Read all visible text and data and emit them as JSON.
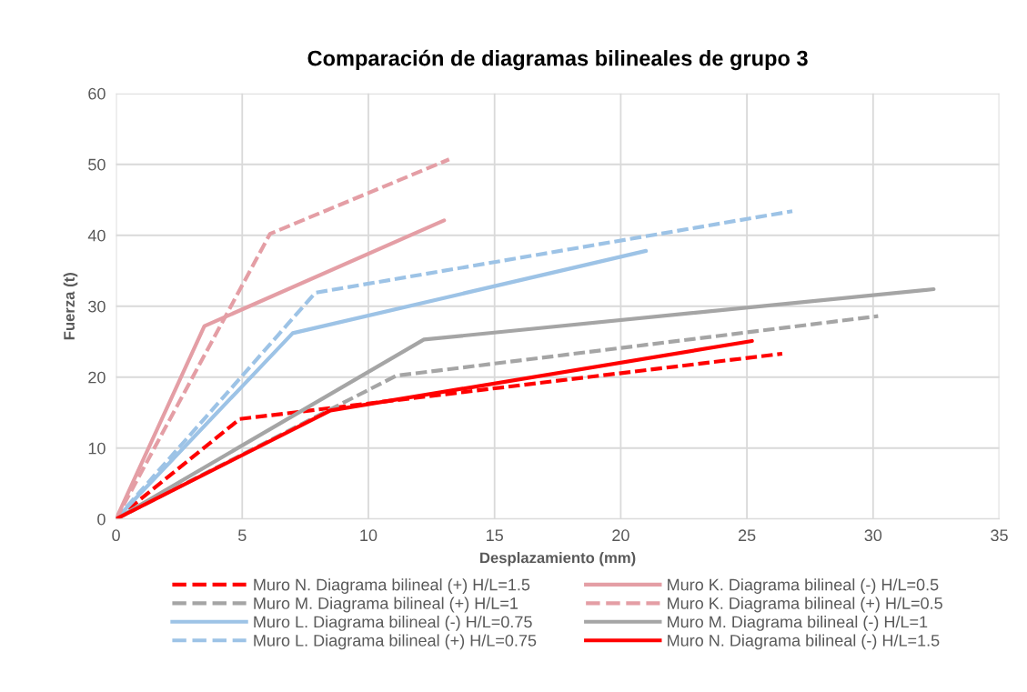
{
  "chart_data": {
    "type": "line",
    "title": "Comparación de diagramas bilineales de grupo 3",
    "xlabel": "Desplazamiento (mm)",
    "ylabel": "Fuerza (t)",
    "xlim": [
      0,
      35
    ],
    "xticks": [
      0,
      5,
      10,
      15,
      20,
      25,
      30,
      35
    ],
    "ylim": [
      0,
      60
    ],
    "yticks": [
      0,
      10,
      20,
      30,
      40,
      50,
      60
    ],
    "grid": true,
    "legend": "bottom",
    "marker": "none",
    "series": [
      {
        "name": "Muro N. Diagrama bilineal (+) H/L=1.5",
        "color": "#ff0000",
        "line_style": "dashed",
        "x": [
          0,
          4.9,
          26.4
        ],
        "values": [
          0,
          14.1,
          23.3
        ]
      },
      {
        "name": "Muro M. Diagrama bilineal (+) H/L=1",
        "color": "#a5a5a5",
        "line_style": "dashed",
        "x": [
          0,
          11.1,
          30.2
        ],
        "values": [
          0,
          20.2,
          28.6
        ]
      },
      {
        "name": "Muro L. Diagrama bilineal (-) H/L=0.75",
        "color": "#9dc3e6",
        "line_style": "solid",
        "x": [
          0,
          7.0,
          21.0
        ],
        "values": [
          0,
          26.2,
          37.8
        ]
      },
      {
        "name": "Muro L. Diagrama bilineal (+) H/L=0.75",
        "color": "#9dc3e6",
        "line_style": "dashed",
        "x": [
          0,
          7.9,
          26.8
        ],
        "values": [
          0,
          31.9,
          43.4
        ]
      },
      {
        "name": "Muro K. Diagrama bilineal (-) H/L=0.5",
        "color": "#e49ea5",
        "line_style": "solid",
        "x": [
          0,
          3.5,
          13.0
        ],
        "values": [
          0,
          27.2,
          42.1
        ]
      },
      {
        "name": "Muro K. Diagrama bilineal (+) H/L=0.5",
        "color": "#e49ea5",
        "line_style": "dashed",
        "x": [
          0,
          6.1,
          13.2
        ],
        "values": [
          0,
          40.2,
          50.7
        ]
      },
      {
        "name": "Muro M. Diagrama bilineal (-) H/L=1",
        "color": "#a5a5a5",
        "line_style": "solid",
        "x": [
          0,
          12.2,
          32.4
        ],
        "values": [
          0,
          25.3,
          32.4
        ]
      },
      {
        "name": "Muro N. Diagrama bilineal (-) H/L=1.5",
        "color": "#ff0000",
        "line_style": "solid",
        "x": [
          0,
          8.5,
          25.2
        ],
        "values": [
          0,
          15.3,
          25.1
        ]
      }
    ]
  }
}
